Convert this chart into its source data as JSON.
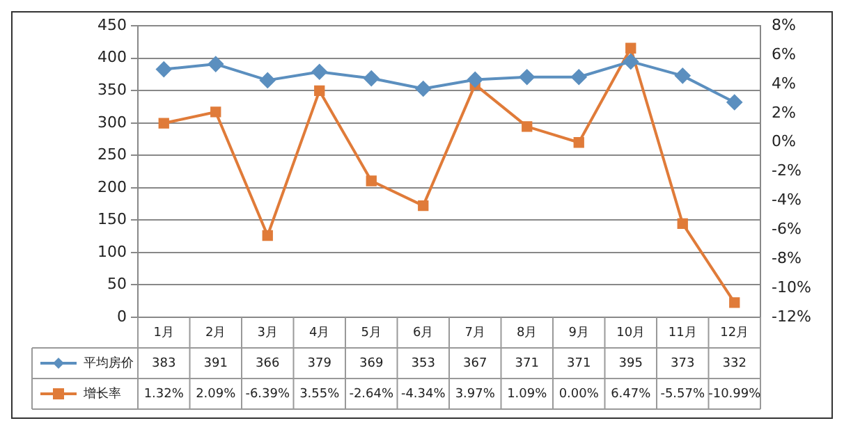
{
  "chart_data": {
    "type": "line",
    "categories": [
      "1月",
      "2月",
      "3月",
      "4月",
      "5月",
      "6月",
      "7月",
      "8月",
      "9月",
      "10月",
      "11月",
      "12月"
    ],
    "series": [
      {
        "name": "平均房价",
        "color": "#5b8fbf",
        "marker": "diamond",
        "values": [
          383,
          391,
          366,
          379,
          369,
          353,
          367,
          371,
          371,
          395,
          373,
          332
        ],
        "value_labels": [
          "383",
          "391",
          "366",
          "379",
          "369",
          "353",
          "367",
          "371",
          "371",
          "395",
          "373",
          "332"
        ]
      },
      {
        "name": "增长率",
        "color": "#e07b39",
        "marker": "square",
        "axis": "y2",
        "values": [
          1.32,
          2.09,
          -6.39,
          3.55,
          -2.64,
          -4.34,
          3.97,
          1.09,
          0.0,
          6.47,
          -5.57,
          -10.99
        ],
        "value_labels": [
          "1.32%",
          "2.09%",
          "-6.39%",
          "3.55%",
          "-2.64%",
          "-4.34%",
          "3.97%",
          "1.09%",
          "0.00%",
          "6.47%",
          "-5.57%",
          "-10.99%"
        ]
      }
    ],
    "ylim": [
      0,
      450
    ],
    "yticks": [
      0,
      50,
      100,
      150,
      200,
      250,
      300,
      350,
      400,
      450
    ],
    "y2lim": [
      -12,
      8
    ],
    "y2ticks": [
      {
        "value": -12,
        "label": "-12%"
      },
      {
        "value": -10,
        "label": "-10%"
      },
      {
        "value": -8,
        "label": "-8%"
      },
      {
        "value": -6,
        "label": "-6%"
      },
      {
        "value": -4,
        "label": "-4%"
      },
      {
        "value": -2,
        "label": "-2%"
      },
      {
        "value": 0,
        "label": "0%"
      },
      {
        "value": 2,
        "label": "2%"
      },
      {
        "value": 4,
        "label": "4%"
      },
      {
        "value": 6,
        "label": "6%"
      },
      {
        "value": 8,
        "label": "8%"
      }
    ],
    "grid": "y",
    "legend": "bottom",
    "line_style": "solid"
  }
}
